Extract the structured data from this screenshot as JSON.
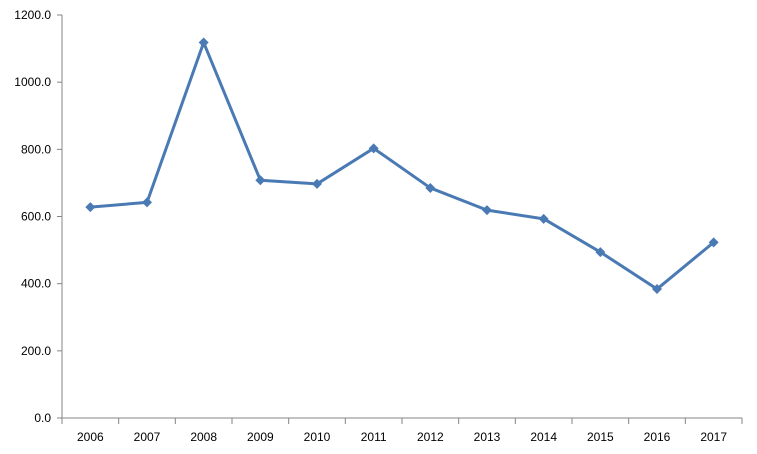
{
  "chart_data": {
    "type": "line",
    "title": "",
    "xlabel": "",
    "ylabel": "",
    "categories": [
      "2006",
      "2007",
      "2008",
      "2009",
      "2010",
      "2011",
      "2012",
      "2013",
      "2014",
      "2015",
      "2016",
      "2017"
    ],
    "series": [
      {
        "values": [
          628,
          642,
          1118,
          708,
          697,
          803,
          685,
          619,
          593,
          494,
          384,
          523
        ],
        "color": "#4a7ab3"
      }
    ],
    "ylim": [
      0,
      1200
    ],
    "yticks": [
      "0.0",
      "200.0",
      "400.0",
      "600.0",
      "800.0",
      "1000.0",
      "1200.0"
    ],
    "marker": "diamond",
    "grid": false,
    "legend": "none"
  }
}
